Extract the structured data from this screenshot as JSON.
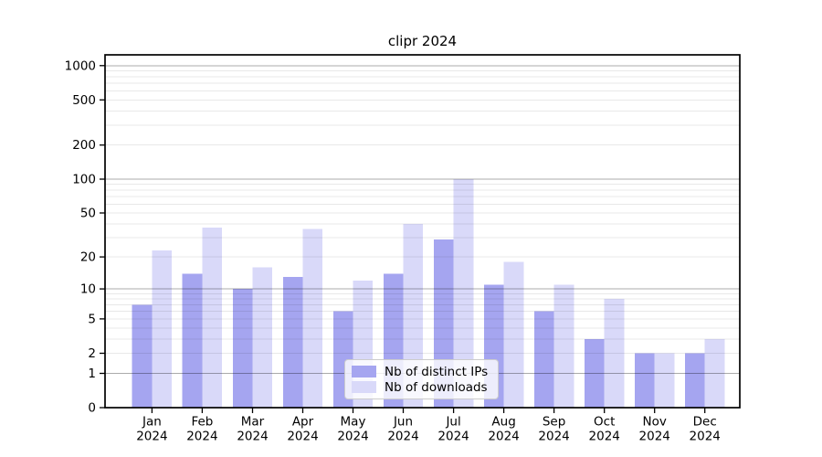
{
  "title": "clipr 2024",
  "colors": {
    "distinct_ips": "#a5a5f0",
    "downloads": "#d9d9f9",
    "grid_major": "rgba(0,0,0,0.33)",
    "grid_minor": "rgba(0,0,0,0.09)",
    "axis": "#000000",
    "text": "#000000"
  },
  "legend": {
    "items": [
      {
        "label": "Nb of distinct IPs",
        "color_key": "distinct_ips"
      },
      {
        "label": "Nb of downloads",
        "color_key": "downloads"
      }
    ]
  },
  "chart_data": {
    "type": "bar",
    "title": "clipr 2024",
    "categories": [
      "Jan",
      "Feb",
      "Mar",
      "Apr",
      "May",
      "Jun",
      "Jul",
      "Aug",
      "Sep",
      "Oct",
      "Nov",
      "Dec"
    ],
    "category_year": "2024",
    "series": [
      {
        "name": "Nb of distinct IPs",
        "color_key": "distinct_ips",
        "values": [
          7,
          14,
          10,
          13,
          6,
          14,
          29,
          11,
          6,
          3,
          2,
          2
        ]
      },
      {
        "name": "Nb of downloads",
        "color_key": "downloads",
        "values": [
          23,
          37,
          16,
          36,
          12,
          40,
          100,
          18,
          11,
          8,
          2,
          3
        ]
      }
    ],
    "xlabel": "",
    "ylabel": "",
    "y_scale": "log1p",
    "y_ticks": [
      0,
      1,
      2,
      5,
      10,
      20,
      50,
      100,
      200,
      500,
      1000
    ],
    "y_major_gridlines": [
      1,
      10,
      100,
      1000
    ],
    "y_max": 1243,
    "ylim": [
      0,
      1243
    ],
    "grid": true,
    "legend_position": "lower center"
  }
}
